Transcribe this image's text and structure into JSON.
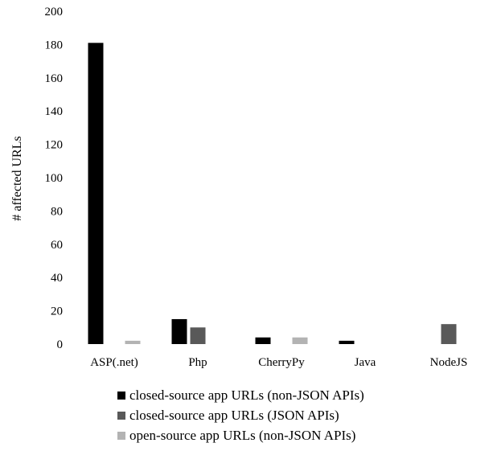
{
  "chart_data": {
    "type": "bar",
    "title": "",
    "xlabel": "",
    "ylabel": "# affected URLs",
    "ylim": [
      0,
      200
    ],
    "yticks": [
      0,
      20,
      40,
      60,
      80,
      100,
      120,
      140,
      160,
      180,
      200
    ],
    "categories": [
      "ASP(.net)",
      "Php",
      "CherryPy",
      "Java",
      "NodeJS"
    ],
    "grid": false,
    "legend_position": "bottom",
    "series": [
      {
        "name": "closed-source app URLs (non-JSON APIs)",
        "color": "#000000",
        "values": [
          181,
          15,
          4,
          2,
          0
        ]
      },
      {
        "name": "closed-source app URLs (JSON APIs)",
        "color": "#595959",
        "values": [
          0,
          10,
          0,
          0,
          12
        ]
      },
      {
        "name": "open-source app URLs (non-JSON APIs)",
        "color": "#b3b3b3",
        "values": [
          2,
          0,
          4,
          0,
          0
        ]
      }
    ]
  }
}
